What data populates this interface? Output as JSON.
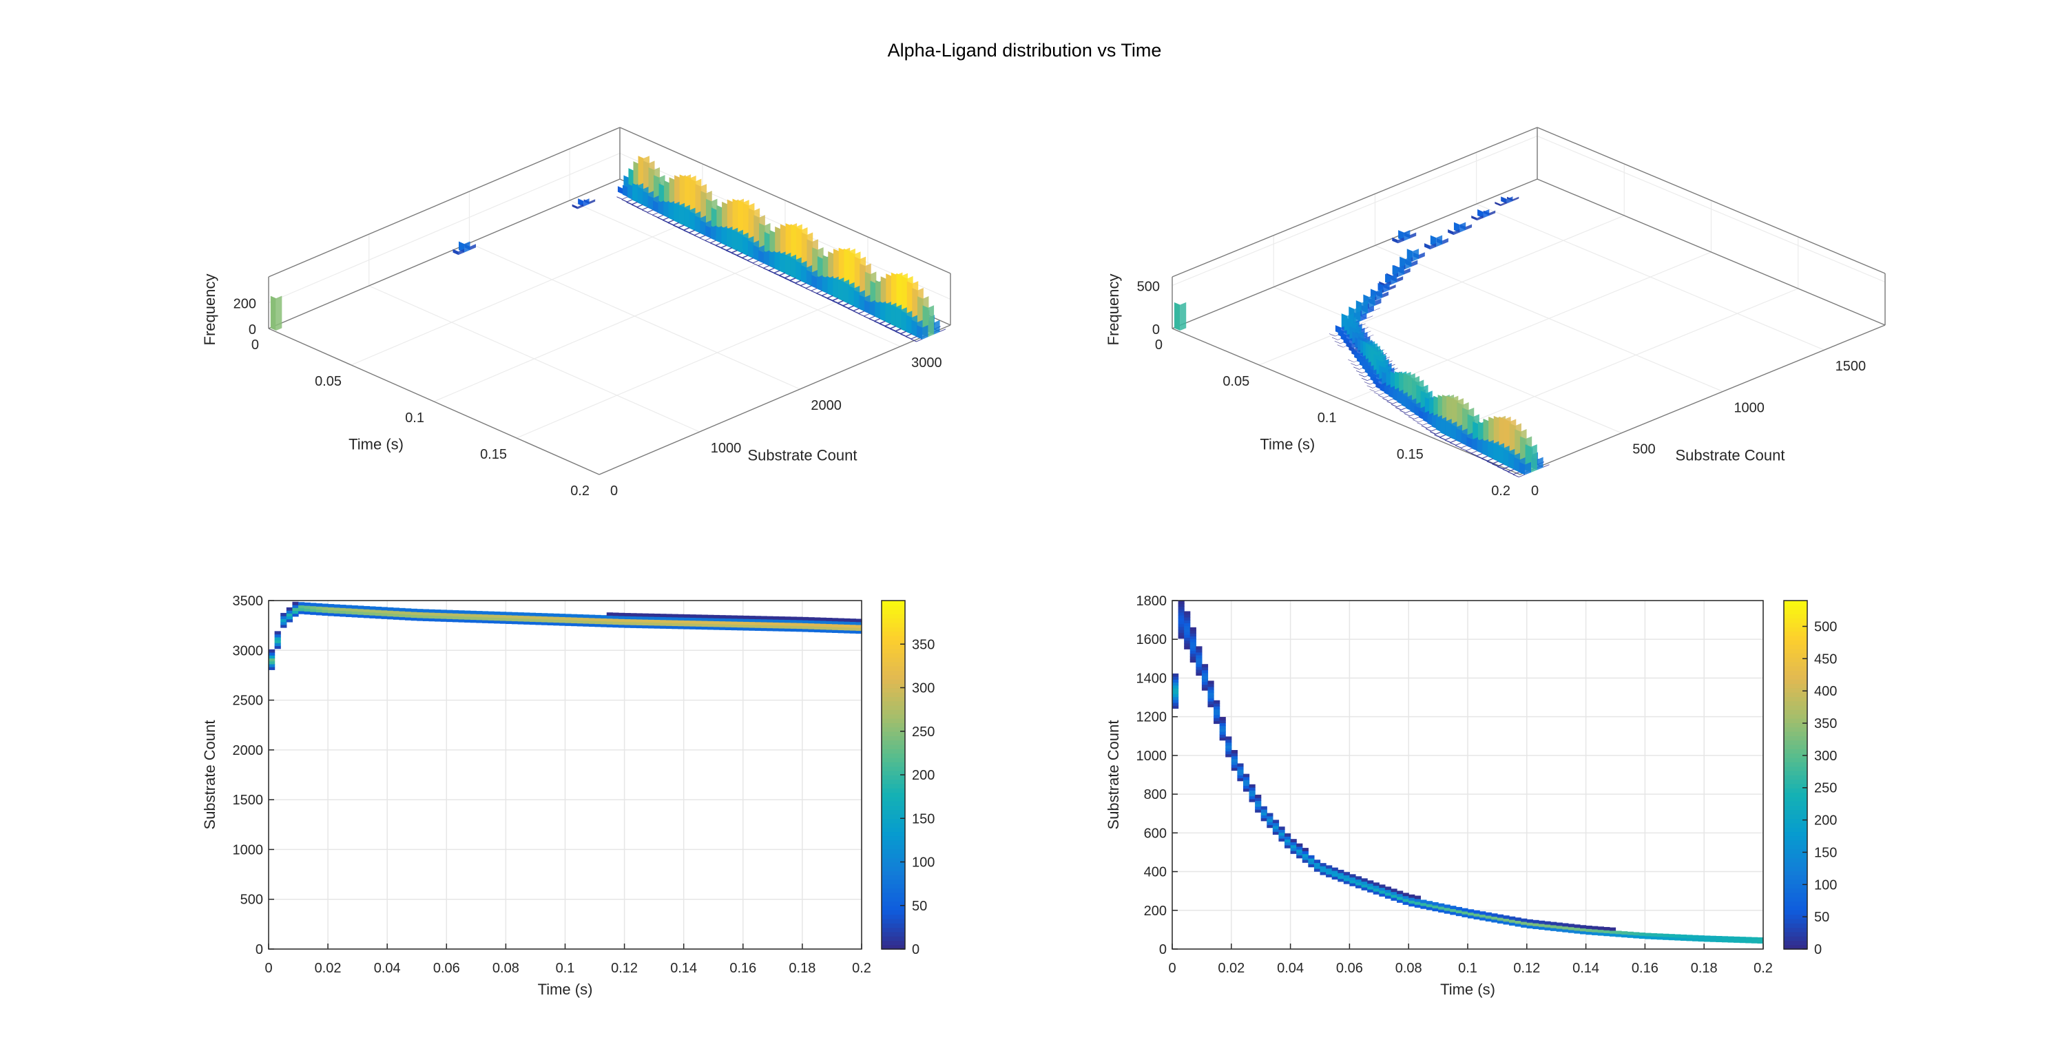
{
  "figure": {
    "title": "Alpha-Ligand distribution vs Time"
  },
  "chart_data": [
    {
      "type": "3d-bar",
      "panel": "top-left",
      "zlabel": "Frequency",
      "xlabel": "Time (s)",
      "ylabel": "Substrate Count",
      "xlim": [
        0,
        0.2
      ],
      "ylim": [
        0,
        3500
      ],
      "zlim": [
        0,
        400
      ],
      "xticks": [
        "0",
        "0.05",
        "0.1",
        "0.15",
        "0.2"
      ],
      "yticks": [
        "0",
        "1000",
        "2000",
        "3000"
      ],
      "zticks": [
        "0",
        "200"
      ],
      "colormap": "parula",
      "ridge": {
        "t": [
          0,
          0.005,
          0.01,
          0.02,
          0.05,
          0.1,
          0.15,
          0.2
        ],
        "mean_count": [
          0,
          2800,
          3400,
          3380,
          3350,
          3320,
          3290,
          3250
        ],
        "peak_frequency": [
          250,
          20,
          120,
          330,
          350,
          360,
          370,
          380
        ]
      }
    },
    {
      "type": "3d-bar",
      "panel": "top-right",
      "zlabel": "Frequency",
      "xlabel": "Time (s)",
      "ylabel": "Substrate Count",
      "xlim": [
        0,
        0.2
      ],
      "ylim": [
        0,
        1800
      ],
      "zlim": [
        0,
        600
      ],
      "xticks": [
        "0",
        "0.05",
        "0.1",
        "0.15",
        "0.2"
      ],
      "yticks": [
        "0",
        "500",
        "1000",
        "1500"
      ],
      "zticks": [
        "0",
        "500"
      ],
      "colormap": "parula",
      "ridge": {
        "t": [
          0,
          0.005,
          0.02,
          0.05,
          0.1,
          0.15,
          0.2
        ],
        "mean_count": [
          0,
          1650,
          1000,
          420,
          190,
          80,
          40
        ],
        "peak_frequency": [
          300,
          60,
          120,
          180,
          260,
          400,
          500
        ]
      }
    },
    {
      "type": "heatmap",
      "panel": "bottom-left",
      "xlabel": "Time (s)",
      "ylabel": "Substrate Count",
      "xlim": [
        0,
        0.2
      ],
      "ylim": [
        0,
        3500
      ],
      "xticks": [
        "0",
        "0.02",
        "0.04",
        "0.06",
        "0.08",
        "0.1",
        "0.12",
        "0.14",
        "0.16",
        "0.18",
        "0.2"
      ],
      "yticks": [
        "0",
        "500",
        "1000",
        "1500",
        "2000",
        "2500",
        "3000",
        "3500"
      ],
      "colorbar": {
        "min": 0,
        "max": 400,
        "ticks": [
          "0",
          "50",
          "100",
          "150",
          "200",
          "250",
          "300",
          "350"
        ]
      },
      "grid": true,
      "colormap": "parula",
      "band": {
        "t": [
          0.0,
          0.005,
          0.01,
          0.02,
          0.05,
          0.08,
          0.1,
          0.12,
          0.15,
          0.18,
          0.2
        ],
        "mean_count": [
          2800,
          3300,
          3430,
          3410,
          3360,
          3330,
          3310,
          3290,
          3270,
          3250,
          3230
        ],
        "half_width": [
          100,
          70,
          60,
          60,
          60,
          60,
          60,
          60,
          60,
          60,
          60
        ],
        "peak_frequency": [
          250,
          150,
          250,
          300,
          320,
          330,
          340,
          345,
          350,
          355,
          360
        ]
      }
    },
    {
      "type": "heatmap",
      "panel": "bottom-right",
      "xlabel": "Time (s)",
      "ylabel": "Substrate Count",
      "xlim": [
        0,
        0.2
      ],
      "ylim": [
        0,
        1800
      ],
      "xticks": [
        "0",
        "0.02",
        "0.04",
        "0.06",
        "0.08",
        "0.1",
        "0.12",
        "0.14",
        "0.16",
        "0.18",
        "0.2"
      ],
      "yticks": [
        "0",
        "200",
        "400",
        "600",
        "800",
        "1000",
        "1200",
        "1400",
        "1600",
        "1800"
      ],
      "colorbar": {
        "min": 0,
        "max": 540,
        "ticks": [
          "0",
          "50",
          "100",
          "150",
          "200",
          "250",
          "300",
          "350",
          "400",
          "450",
          "500"
        ]
      },
      "grid": true,
      "colormap": "parula",
      "band": {
        "t": [
          0.0,
          0.003,
          0.005,
          0.01,
          0.02,
          0.03,
          0.04,
          0.05,
          0.06,
          0.08,
          0.1,
          0.12,
          0.14,
          0.16,
          0.18,
          0.2
        ],
        "mean_count": [
          1150,
          1700,
          1650,
          1450,
          1000,
          720,
          540,
          420,
          360,
          250,
          185,
          130,
          95,
          70,
          55,
          45
        ],
        "half_width": [
          80,
          110,
          100,
          70,
          50,
          40,
          35,
          30,
          28,
          25,
          22,
          20,
          18,
          16,
          15,
          15
        ],
        "peak_frequency": [
          300,
          60,
          80,
          100,
          120,
          150,
          180,
          200,
          220,
          260,
          300,
          340,
          380,
          420,
          470,
          520
        ]
      }
    }
  ]
}
